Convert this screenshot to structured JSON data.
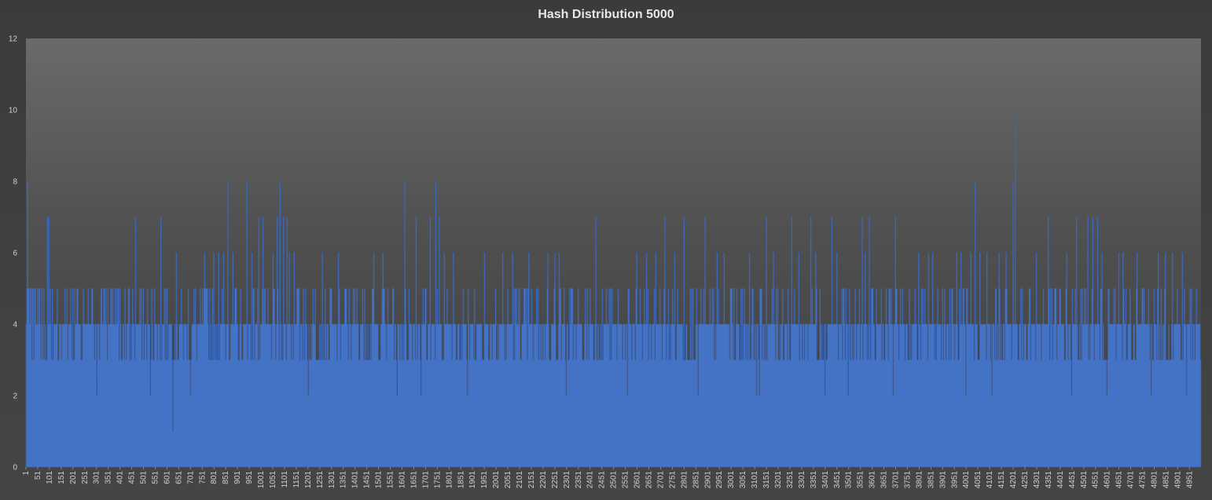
{
  "chart_data": {
    "type": "area",
    "title": "Hash Distribution 5000",
    "xlabel": "",
    "ylabel": "",
    "ylim": [
      0,
      12
    ],
    "yticks": [
      0,
      2,
      4,
      6,
      8,
      10,
      12
    ],
    "x_range": [
      1,
      5000
    ],
    "x_tick_step": 50,
    "x_tick_labels": [
      "1",
      "51",
      "101",
      "151",
      "201",
      "251",
      "301",
      "351",
      "401",
      "451",
      "501",
      "551",
      "601",
      "651",
      "701",
      "751",
      "801",
      "851",
      "901",
      "951",
      "1001",
      "1051",
      "1101",
      "1151",
      "1201",
      "1251",
      "1301",
      "1351",
      "1401",
      "1451",
      "1501",
      "1551",
      "1601",
      "1651",
      "1701",
      "1751",
      "1801",
      "1851",
      "1901",
      "1951",
      "2001",
      "2051",
      "2101",
      "2151",
      "2201",
      "2251",
      "2301",
      "2351",
      "2401",
      "2451",
      "2501",
      "2551",
      "2601",
      "2651",
      "2701",
      "2751",
      "2801",
      "2851",
      "2901",
      "2951",
      "3001",
      "3051",
      "3101",
      "3151",
      "3201",
      "3251",
      "3301",
      "3351",
      "3401",
      "3451",
      "3501",
      "3551",
      "3601",
      "3651",
      "3701",
      "3751",
      "3801",
      "3851",
      "3901",
      "3951",
      "4001",
      "4051",
      "4101",
      "4151",
      "4201",
      "4251",
      "4301",
      "4351",
      "4401",
      "4451",
      "4501",
      "4551",
      "4601",
      "4651",
      "4701",
      "4751",
      "4801",
      "4851",
      "4901",
      "4951"
    ],
    "series": [
      {
        "color": "#4472c4",
        "peaks": [
          [
            4,
            5
          ],
          [
            7,
            8
          ],
          [
            12,
            5
          ],
          [
            22,
            5
          ],
          [
            30,
            5
          ],
          [
            40,
            5
          ],
          [
            45,
            4
          ],
          [
            50,
            5
          ],
          [
            58,
            5
          ],
          [
            62,
            4
          ],
          [
            66,
            5
          ],
          [
            70,
            4
          ],
          [
            92,
            7
          ],
          [
            98,
            7
          ],
          [
            104,
            5
          ],
          [
            112,
            5
          ],
          [
            135,
            3
          ],
          [
            142,
            4
          ],
          [
            150,
            3
          ],
          [
            165,
            5
          ],
          [
            175,
            5
          ],
          [
            190,
            5
          ],
          [
            200,
            5
          ],
          [
            220,
            5
          ],
          [
            245,
            5
          ],
          [
            265,
            5
          ],
          [
            280,
            5
          ],
          [
            300,
            2
          ],
          [
            320,
            5
          ],
          [
            330,
            5
          ],
          [
            350,
            5
          ],
          [
            365,
            5
          ],
          [
            385,
            5
          ],
          [
            400,
            5
          ],
          [
            420,
            5
          ],
          [
            440,
            5
          ],
          [
            455,
            5
          ],
          [
            465,
            7
          ],
          [
            485,
            5
          ],
          [
            500,
            5
          ],
          [
            530,
            2
          ],
          [
            548,
            5
          ],
          [
            575,
            7
          ],
          [
            590,
            5
          ],
          [
            610,
            4
          ],
          [
            620,
            4
          ],
          [
            624,
            1
          ],
          [
            640,
            6
          ],
          [
            655,
            4
          ],
          [
            690,
            5
          ],
          [
            700,
            2
          ],
          [
            760,
            6
          ],
          [
            780,
            5
          ],
          [
            800,
            6
          ],
          [
            820,
            6
          ],
          [
            840,
            6
          ],
          [
            860,
            8
          ],
          [
            880,
            6
          ],
          [
            900,
            4
          ],
          [
            940,
            8
          ],
          [
            960,
            6
          ],
          [
            990,
            7
          ],
          [
            1010,
            7
          ],
          [
            1030,
            5
          ],
          [
            1050,
            6
          ],
          [
            1070,
            7
          ],
          [
            1082,
            8
          ],
          [
            1095,
            7
          ],
          [
            1110,
            7
          ],
          [
            1120,
            6
          ],
          [
            1140,
            6
          ],
          [
            1160,
            5
          ],
          [
            1180,
            5
          ],
          [
            1200,
            2
          ],
          [
            1230,
            5
          ],
          [
            1260,
            6
          ],
          [
            1300,
            5
          ],
          [
            1330,
            6
          ],
          [
            1360,
            5
          ],
          [
            1400,
            5
          ],
          [
            1440,
            5
          ],
          [
            1480,
            6
          ],
          [
            1520,
            6
          ],
          [
            1560,
            5
          ],
          [
            1580,
            2
          ],
          [
            1612,
            8
          ],
          [
            1630,
            5
          ],
          [
            1660,
            7
          ],
          [
            1680,
            2
          ],
          [
            1700,
            5
          ],
          [
            1720,
            7
          ],
          [
            1743,
            8
          ],
          [
            1760,
            7
          ],
          [
            1780,
            6
          ],
          [
            1820,
            6
          ],
          [
            1860,
            5
          ],
          [
            1880,
            2
          ],
          [
            1910,
            5
          ],
          [
            1950,
            6
          ],
          [
            2000,
            5
          ],
          [
            2030,
            6
          ],
          [
            2070,
            6
          ],
          [
            2100,
            5
          ],
          [
            2140,
            6
          ],
          [
            2180,
            5
          ],
          [
            2220,
            6
          ],
          [
            2250,
            6
          ],
          [
            2270,
            6
          ],
          [
            2300,
            2
          ],
          [
            2350,
            5
          ],
          [
            2400,
            5
          ],
          [
            2425,
            7
          ],
          [
            2470,
            5
          ],
          [
            2520,
            5
          ],
          [
            2560,
            2
          ],
          [
            2600,
            6
          ],
          [
            2640,
            6
          ],
          [
            2680,
            6
          ],
          [
            2720,
            7
          ],
          [
            2760,
            6
          ],
          [
            2800,
            7
          ],
          [
            2840,
            5
          ],
          [
            2860,
            2
          ],
          [
            2890,
            7
          ],
          [
            2940,
            6
          ],
          [
            2970,
            6
          ],
          [
            3000,
            5
          ],
          [
            3050,
            5
          ],
          [
            3080,
            6
          ],
          [
            3110,
            2
          ],
          [
            3120,
            2
          ],
          [
            3150,
            7
          ],
          [
            3180,
            6
          ],
          [
            3220,
            5
          ],
          [
            3260,
            7
          ],
          [
            3290,
            6
          ],
          [
            3340,
            7
          ],
          [
            3360,
            6
          ],
          [
            3380,
            5
          ],
          [
            3400,
            2
          ],
          [
            3430,
            7
          ],
          [
            3450,
            6
          ],
          [
            3480,
            5
          ],
          [
            3500,
            2
          ],
          [
            3530,
            5
          ],
          [
            3560,
            7
          ],
          [
            3570,
            6
          ],
          [
            3590,
            7
          ],
          [
            3620,
            5
          ],
          [
            3640,
            5
          ],
          [
            3660,
            5
          ],
          [
            3690,
            2
          ],
          [
            3700,
            7
          ],
          [
            3720,
            5
          ],
          [
            3760,
            5
          ],
          [
            3800,
            6
          ],
          [
            3840,
            6
          ],
          [
            3860,
            6
          ],
          [
            3880,
            5
          ],
          [
            3900,
            5
          ],
          [
            3930,
            5
          ],
          [
            3960,
            6
          ],
          [
            3980,
            6
          ],
          [
            4000,
            2
          ],
          [
            4020,
            6
          ],
          [
            4040,
            8
          ],
          [
            4060,
            6
          ],
          [
            4090,
            6
          ],
          [
            4110,
            2
          ],
          [
            4140,
            6
          ],
          [
            4170,
            6
          ],
          [
            4200,
            8
          ],
          [
            4210,
            10
          ],
          [
            4240,
            5
          ],
          [
            4270,
            5
          ],
          [
            4300,
            6
          ],
          [
            4330,
            5
          ],
          [
            4350,
            7
          ],
          [
            4380,
            5
          ],
          [
            4400,
            5
          ],
          [
            4430,
            6
          ],
          [
            4450,
            2
          ],
          [
            4470,
            7
          ],
          [
            4490,
            5
          ],
          [
            4520,
            7
          ],
          [
            4540,
            7
          ],
          [
            4560,
            7
          ],
          [
            4580,
            6
          ],
          [
            4600,
            2
          ],
          [
            4630,
            5
          ],
          [
            4650,
            6
          ],
          [
            4670,
            6
          ],
          [
            4700,
            5
          ],
          [
            4730,
            6
          ],
          [
            4760,
            5
          ],
          [
            4790,
            2
          ],
          [
            4820,
            6
          ],
          [
            4850,
            6
          ],
          [
            4880,
            6
          ],
          [
            4900,
            5
          ],
          [
            4920,
            6
          ],
          [
            4940,
            2
          ],
          [
            4960,
            5
          ],
          [
            4980,
            5
          ],
          [
            5000,
            3
          ]
        ]
      }
    ]
  }
}
